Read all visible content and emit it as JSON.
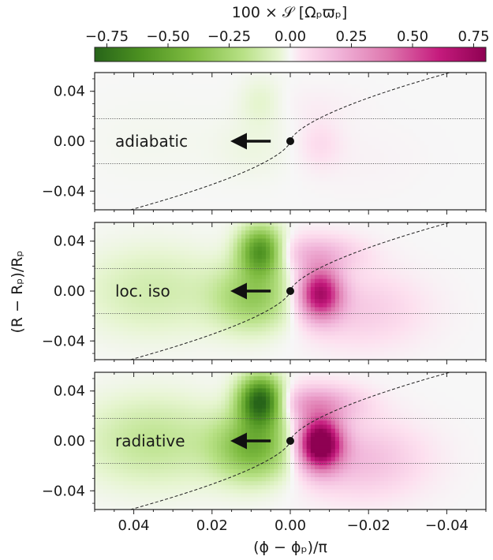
{
  "chart_data": {
    "type": "heatmap",
    "colorbar": {
      "label": "100 × 𝒮 [Ωₚϖₚ]",
      "range": [
        -0.8,
        0.8
      ],
      "ticks": [
        "−0.75",
        "−0.50",
        "−0.25",
        "0.00",
        "0.25",
        "0.50",
        "0.75"
      ],
      "tick_values": [
        -0.75,
        -0.5,
        -0.25,
        0.0,
        0.25,
        0.5,
        0.75
      ],
      "colormap": "PiYG (reversed)",
      "colors": {
        "neg_max": "#276419",
        "neg_mid": "#7fbc41",
        "zero": "#f7f7f7",
        "pos_mid": "#de77ae",
        "pos_max": "#8e0152"
      }
    },
    "xlabel": "(ϕ − ϕₚ)/π",
    "ylabel": "(R − Rₚ)/Rₚ",
    "xlim": [
      0.05,
      -0.05
    ],
    "ylim": [
      -0.055,
      0.055
    ],
    "xticks": [
      "0.04",
      "0.02",
      "0.00",
      "−0.02",
      "−0.04"
    ],
    "xtick_values": [
      0.04,
      0.02,
      0.0,
      -0.02,
      -0.04
    ],
    "yticks": [
      "0.04",
      "0.00",
      "−0.04"
    ],
    "ytick_values": [
      0.04,
      0.0,
      -0.04
    ],
    "hill_lines_y": [
      0.018,
      -0.018
    ],
    "planet": {
      "x": 0.0,
      "y": 0.0
    },
    "arrow": {
      "from_x": 0.005,
      "to_x": 0.013,
      "y": 0.0
    },
    "panels": [
      {
        "label": "adiabatic",
        "amplitude": 0.08
      },
      {
        "label": "loc. iso",
        "amplitude": 0.72
      },
      {
        "label": "radiative",
        "amplitude": 1.0
      }
    ]
  }
}
